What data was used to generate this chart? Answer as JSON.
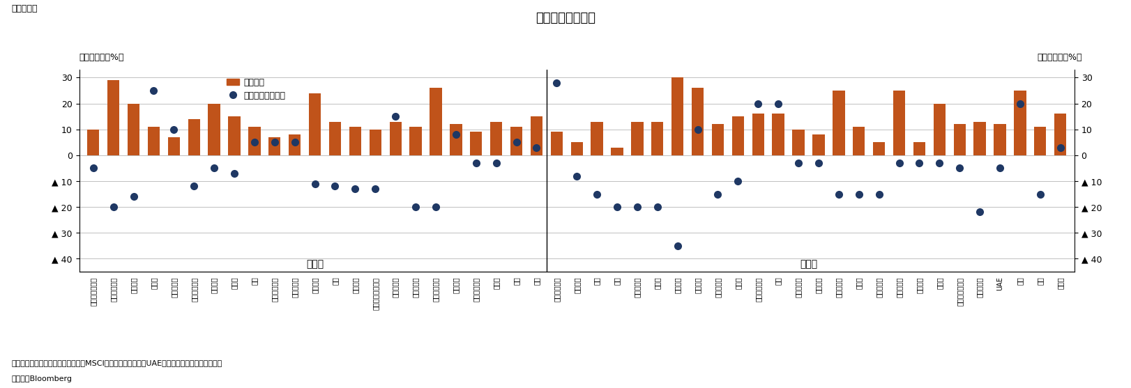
{
  "title": "各国の株価変動率",
  "fig_label": "（図表４）",
  "ylabel_left": "（前月末比、%）",
  "ylabel_right": "（前年末比、%）",
  "legend_bar": "前月末比",
  "legend_dot": "前年末比（右軸）",
  "note": "（注）各国指数は現地通貨ベースのMSCI構成指数、ただし、UAEはサウジ・タダウル全株指数",
  "source": "（資料）Bloomberg",
  "group_label_advanced": "先進国",
  "group_label_emerging": "新興国",
  "bar_color": "#C0531A",
  "dot_color": "#1F3864",
  "grid_color": "#C0C0C0",
  "ylim": [
    -45,
    33
  ],
  "yticks": [
    30,
    20,
    10,
    0,
    -10,
    -20,
    -30,
    -40
  ],
  "countries": [
    "オーストラリア",
    "オーストリア",
    "ベルギー",
    "カナダ",
    "デンマーク",
    "フィンランド",
    "フランス",
    "ドイツ",
    "英国",
    "アイルランド",
    "イスラエル",
    "イタリア",
    "日本",
    "オランダ",
    "ニュージーランド",
    "ノルウェー",
    "ポルトガル",
    "シンガポール",
    "スペイン",
    "スウェーデン",
    "スイス",
    "韓国",
    "米国",
    "アルゼンチン",
    "ブラジル",
    "チリ",
    "中国",
    "コロンビア",
    "チェコ",
    "エジプト",
    "ギリシャ",
    "ハンガリー",
    "インド",
    "インドネシア",
    "韓国",
    "マレーシア",
    "メキシコ",
    "パキスタン",
    "ペルー",
    "フィリピン",
    "ポーランド",
    "カタール",
    "ロシア",
    "サウジアラビア",
    "南アフリカ",
    "UAE",
    "台湾",
    "タイ",
    "トルコ"
  ],
  "bar_values": [
    10,
    29,
    20,
    11,
    7,
    14,
    20,
    15,
    11,
    7,
    8,
    24,
    13,
    11,
    10,
    13,
    11,
    26,
    12,
    9,
    13,
    11,
    15,
    9,
    5,
    13,
    3,
    13,
    13,
    30,
    26,
    12,
    15,
    16,
    16,
    10,
    8,
    25,
    11,
    5,
    25,
    5,
    20,
    12,
    13,
    12,
    25,
    11,
    16
  ],
  "dot_values": [
    -5,
    -20,
    -16,
    25,
    10,
    -12,
    -5,
    -7,
    5,
    5,
    5,
    -11,
    -12,
    -13,
    -13,
    15,
    -20,
    -20,
    8,
    -3,
    -3,
    5,
    3,
    28,
    -8,
    -15,
    -20,
    -20,
    -20,
    -35,
    10,
    -15,
    -10,
    20,
    20,
    -3,
    -3,
    -15,
    -15,
    -15,
    -3,
    -3,
    -3,
    -5,
    -22,
    -5,
    20,
    -15,
    3
  ],
  "advanced_count": 23
}
